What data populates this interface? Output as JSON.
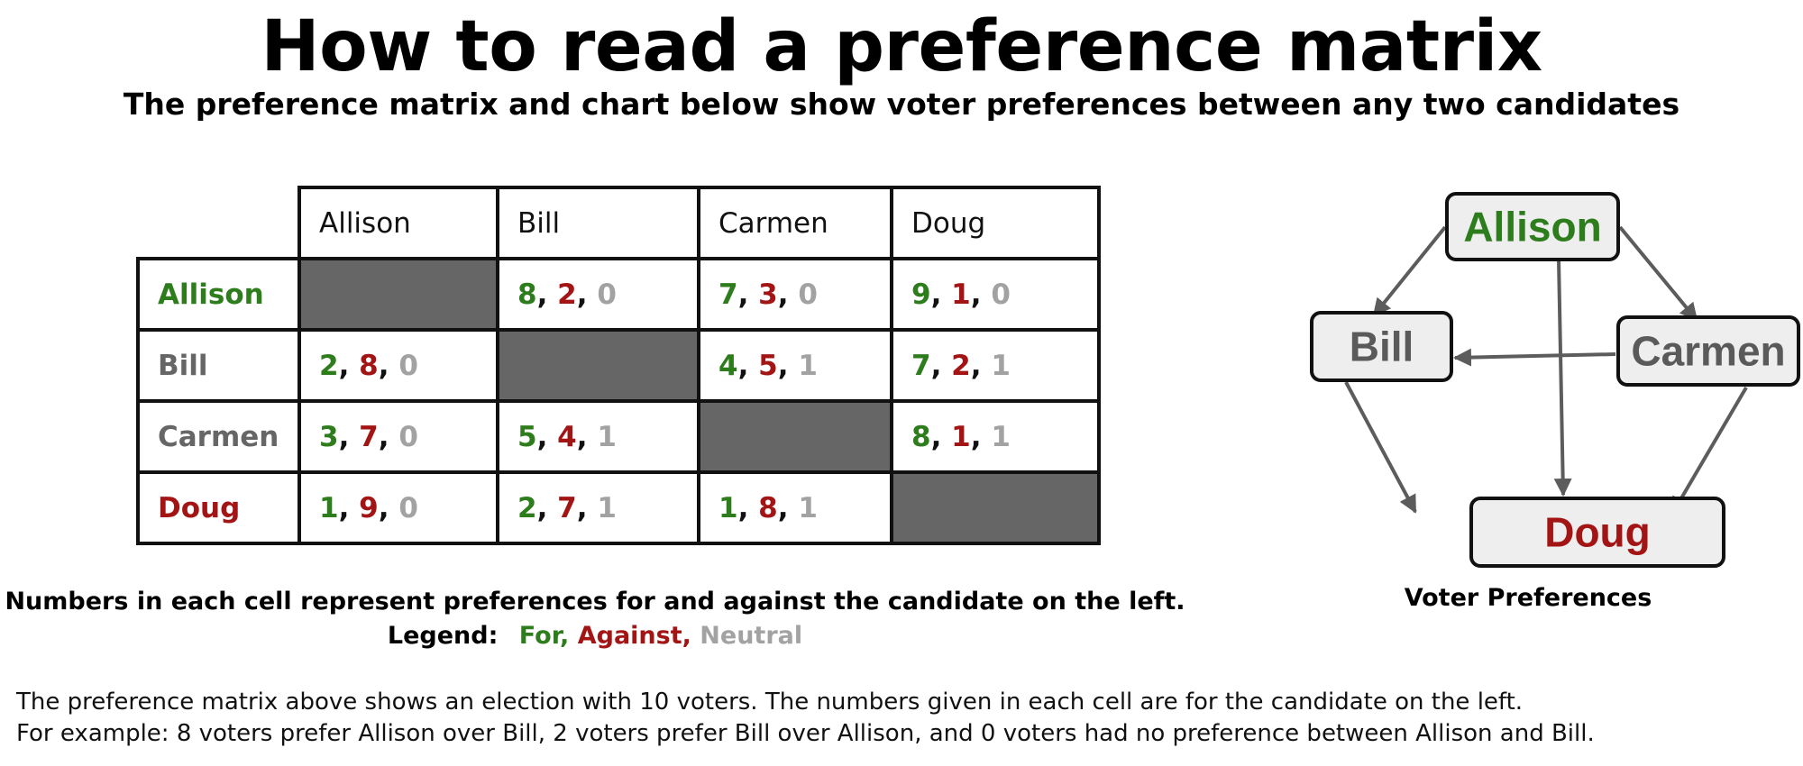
{
  "title": "How to read a preference matrix",
  "subtitle": "The preference matrix and chart below show voter preferences between any two candidates",
  "colors": {
    "for": "#2e7d1d",
    "against": "#a31515",
    "neutral": "#a2a2a2",
    "self_cell": "#666666",
    "node_fill": "#eeeeee",
    "arrow": "#5c5c5c"
  },
  "matrix": {
    "column_headers": [
      "Allison",
      "Bill",
      "Carmen",
      "Doug"
    ],
    "rows": [
      {
        "label": "Allison",
        "label_color": "#2e7d1d",
        "cells": [
          null,
          {
            "for": "8",
            "against": "2",
            "neutral": "0"
          },
          {
            "for": "7",
            "against": "3",
            "neutral": "0"
          },
          {
            "for": "9",
            "against": "1",
            "neutral": "0"
          }
        ]
      },
      {
        "label": "Bill",
        "label_color": "#666666",
        "cells": [
          {
            "for": "2",
            "against": "8",
            "neutral": "0"
          },
          null,
          {
            "for": "4",
            "against": "5",
            "neutral": "1"
          },
          {
            "for": "7",
            "against": "2",
            "neutral": "1"
          }
        ]
      },
      {
        "label": "Carmen",
        "label_color": "#666666",
        "cells": [
          {
            "for": "3",
            "against": "7",
            "neutral": "0"
          },
          {
            "for": "5",
            "against": "4",
            "neutral": "1"
          },
          null,
          {
            "for": "8",
            "against": "1",
            "neutral": "1"
          }
        ]
      },
      {
        "label": "Doug",
        "label_color": "#a31515",
        "cells": [
          {
            "for": "1",
            "against": "9",
            "neutral": "0"
          },
          {
            "for": "2",
            "against": "7",
            "neutral": "1"
          },
          {
            "for": "1",
            "against": "8",
            "neutral": "1"
          },
          null
        ]
      }
    ]
  },
  "note": "Numbers in each cell represent preferences for and against the candidate on the left.",
  "legend": {
    "label": "Legend:",
    "for": "For,",
    "against": "Against,",
    "neutral": "Neutral"
  },
  "diagram": {
    "caption": "Voter Preferences",
    "nodes": [
      {
        "id": "allison",
        "label": "Allison",
        "color": "#2e7d1d"
      },
      {
        "id": "bill",
        "label": "Bill",
        "color": "#5a5a5a"
      },
      {
        "id": "carmen",
        "label": "Carmen",
        "color": "#5a5a5a"
      },
      {
        "id": "doug",
        "label": "Doug",
        "color": "#a31515"
      }
    ],
    "edges": [
      {
        "from": "allison",
        "to": "bill"
      },
      {
        "from": "allison",
        "to": "carmen"
      },
      {
        "from": "allison",
        "to": "doug"
      },
      {
        "from": "carmen",
        "to": "bill"
      },
      {
        "from": "bill",
        "to": "doug"
      },
      {
        "from": "carmen",
        "to": "doug"
      }
    ]
  },
  "footer": {
    "line1": "The preference matrix above shows an election with 10 voters. The numbers given in each cell are for the candidate on the left.",
    "line2": "For example: 8 voters prefer Allison over Bill, 2 voters prefer Bill over Allison, and 0 voters had no preference between Allison and Bill."
  }
}
